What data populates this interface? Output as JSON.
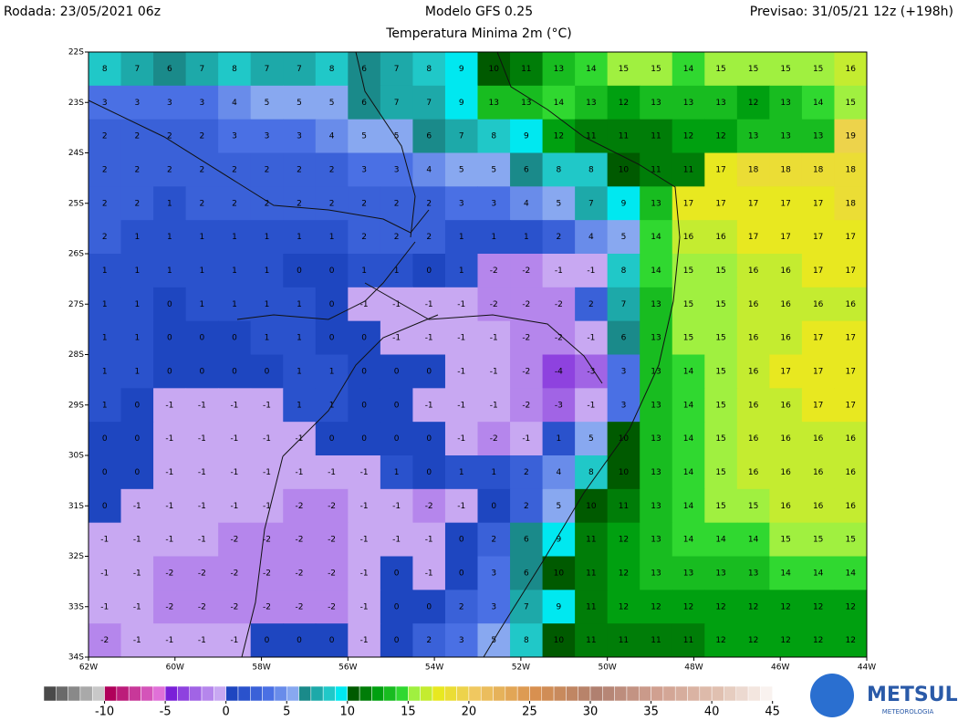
{
  "header": {
    "run": "Rodada: 23/05/2021 06z",
    "model": "Modelo GFS 0.25",
    "field": "Temperatura Minima 2m (°C)",
    "forecast": "Previsao: 31/05/21 12z (+198h)"
  },
  "map": {
    "lonlim": [
      -62,
      -44
    ],
    "latlim": [
      -22,
      -34
    ],
    "lon_ticks": [
      {
        "value": -62,
        "label": "62W"
      },
      {
        "value": -60,
        "label": "60W"
      },
      {
        "value": -58,
        "label": "58W"
      },
      {
        "value": -56,
        "label": "56W"
      },
      {
        "value": -54,
        "label": "54W"
      },
      {
        "value": -52,
        "label": "52W"
      },
      {
        "value": -50,
        "label": "50W"
      },
      {
        "value": -48,
        "label": "48W"
      },
      {
        "value": -46,
        "label": "46W"
      },
      {
        "value": -44,
        "label": "44W"
      }
    ],
    "lat_ticks": [
      {
        "value": -22,
        "label": "22S"
      },
      {
        "value": -23,
        "label": "23S"
      },
      {
        "value": -24,
        "label": "24S"
      },
      {
        "value": -25,
        "label": "25S"
      },
      {
        "value": -26,
        "label": "26S"
      },
      {
        "value": -27,
        "label": "27S"
      },
      {
        "value": -28,
        "label": "28S"
      },
      {
        "value": -29,
        "label": "29S"
      },
      {
        "value": -30,
        "label": "30S"
      },
      {
        "value": -31,
        "label": "31S"
      },
      {
        "value": -32,
        "label": "32S"
      },
      {
        "value": -33,
        "label": "33S"
      },
      {
        "value": -34,
        "label": "34S"
      }
    ],
    "values": [
      [
        8,
        7,
        6,
        7,
        8,
        7,
        7,
        8,
        6,
        7,
        8,
        9,
        10,
        11,
        13,
        14,
        15,
        15,
        14,
        15,
        15,
        15,
        15,
        16
      ],
      [
        3,
        3,
        3,
        3,
        4,
        5,
        5,
        5,
        6,
        7,
        7,
        9,
        13,
        13,
        14,
        13,
        12,
        13,
        13,
        13,
        12,
        13,
        14,
        15
      ],
      [
        2,
        2,
        2,
        2,
        3,
        3,
        3,
        4,
        5,
        5,
        6,
        7,
        8,
        9,
        12,
        11,
        11,
        11,
        12,
        12,
        13,
        13,
        13,
        19
      ],
      [
        2,
        2,
        2,
        2,
        2,
        2,
        2,
        2,
        3,
        3,
        4,
        5,
        5,
        6,
        8,
        8,
        10,
        11,
        11,
        17,
        18,
        18,
        18,
        18
      ],
      [
        2,
        2,
        1,
        2,
        2,
        2,
        2,
        2,
        2,
        2,
        2,
        3,
        3,
        4,
        5,
        7,
        9,
        13,
        17,
        17,
        17,
        17,
        17,
        18
      ],
      [
        2,
        1,
        1,
        1,
        1,
        1,
        1,
        1,
        2,
        2,
        2,
        1,
        1,
        1,
        2,
        4,
        5,
        14,
        16,
        16,
        17,
        17,
        17,
        17
      ],
      [
        1,
        1,
        1,
        1,
        1,
        1,
        0,
        0,
        1,
        1,
        0,
        1,
        -2,
        -2,
        -1,
        -1,
        8,
        14,
        15,
        15,
        16,
        16,
        17,
        17
      ],
      [
        1,
        1,
        0,
        1,
        1,
        1,
        1,
        0,
        -1,
        -1,
        -1,
        -1,
        -2,
        -2,
        -2,
        2,
        7,
        13,
        15,
        15,
        16,
        16,
        16,
        16
      ],
      [
        1,
        1,
        0,
        0,
        0,
        1,
        1,
        0,
        0,
        -1,
        -1,
        -1,
        -1,
        -2,
        -2,
        -1,
        6,
        13,
        15,
        15,
        16,
        16,
        17,
        17
      ],
      [
        1,
        1,
        0,
        0,
        0,
        0,
        1,
        1,
        0,
        0,
        0,
        -1,
        -1,
        -2,
        -4,
        -3,
        3,
        13,
        14,
        15,
        16,
        17,
        17,
        17
      ],
      [
        1,
        0,
        -1,
        -1,
        -1,
        -1,
        1,
        1,
        0,
        0,
        -1,
        -1,
        -1,
        -2,
        -3,
        -1,
        3,
        13,
        14,
        15,
        16,
        16,
        17,
        17
      ],
      [
        0,
        0,
        -1,
        -1,
        -1,
        -1,
        -1,
        0,
        0,
        0,
        0,
        -1,
        -2,
        -1,
        1,
        5,
        10,
        13,
        14,
        15,
        16,
        16,
        16,
        16
      ],
      [
        0,
        0,
        -1,
        -1,
        -1,
        -1,
        -1,
        -1,
        -1,
        1,
        0,
        1,
        1,
        2,
        4,
        8,
        10,
        13,
        14,
        15,
        16,
        16,
        16,
        16
      ],
      [
        0,
        -1,
        -1,
        -1,
        -1,
        -1,
        -2,
        -2,
        -1,
        -1,
        -2,
        -1,
        0,
        2,
        5,
        10,
        11,
        13,
        14,
        15,
        15,
        16,
        16,
        16
      ],
      [
        -1,
        -1,
        -1,
        -1,
        -2,
        -2,
        -2,
        -2,
        -1,
        -1,
        -1,
        0,
        2,
        6,
        9,
        11,
        12,
        13,
        14,
        14,
        14,
        15,
        15,
        15
      ],
      [
        -1,
        -1,
        -2,
        -2,
        -2,
        -2,
        -2,
        -2,
        -1,
        0,
        -1,
        0,
        3,
        6,
        10,
        11,
        12,
        13,
        13,
        13,
        13,
        14,
        14,
        14
      ],
      [
        -1,
        -1,
        -2,
        -2,
        -2,
        -2,
        -2,
        -2,
        -1,
        0,
        0,
        2,
        3,
        7,
        9,
        11,
        12,
        12,
        12,
        12,
        12,
        12,
        12,
        12
      ],
      [
        -2,
        -1,
        -1,
        -1,
        -1,
        0,
        0,
        0,
        -1,
        0,
        2,
        3,
        5,
        8,
        10,
        11,
        11,
        11,
        11,
        12,
        12,
        12,
        12,
        12
      ]
    ]
  },
  "colorbar": {
    "range": [
      -15,
      46
    ],
    "ticks": [
      -10,
      -5,
      0,
      5,
      10,
      15,
      20,
      25,
      30,
      35,
      40,
      45
    ],
    "stops": [
      [
        -15,
        "#4a4a4a"
      ],
      [
        -11,
        "#c8c8c8"
      ],
      [
        -10,
        "#b0005a"
      ],
      [
        -6,
        "#e070d8"
      ],
      [
        -5,
        "#7a20d8"
      ],
      [
        -1,
        "#c8a8f2"
      ],
      [
        0,
        "#1e46c0"
      ],
      [
        1,
        "#2a52cc"
      ],
      [
        3,
        "#4a70e4"
      ],
      [
        5,
        "#88a8f0"
      ],
      [
        6,
        "#1a8a8a"
      ],
      [
        8,
        "#20c8c8"
      ],
      [
        9,
        "#00e8f0"
      ],
      [
        10,
        "#005a00"
      ],
      [
        12,
        "#00a010"
      ],
      [
        14,
        "#30d830"
      ],
      [
        15,
        "#a0f040"
      ],
      [
        17,
        "#e8e820"
      ],
      [
        20,
        "#f0c860"
      ],
      [
        25,
        "#d89050"
      ],
      [
        30,
        "#b08070"
      ],
      [
        35,
        "#d0a090"
      ],
      [
        40,
        "#e0c0b0"
      ],
      [
        45,
        "#ffffff"
      ]
    ]
  },
  "logo": {
    "name": "METSUL",
    "tagline": "METEOROLOGIA"
  }
}
